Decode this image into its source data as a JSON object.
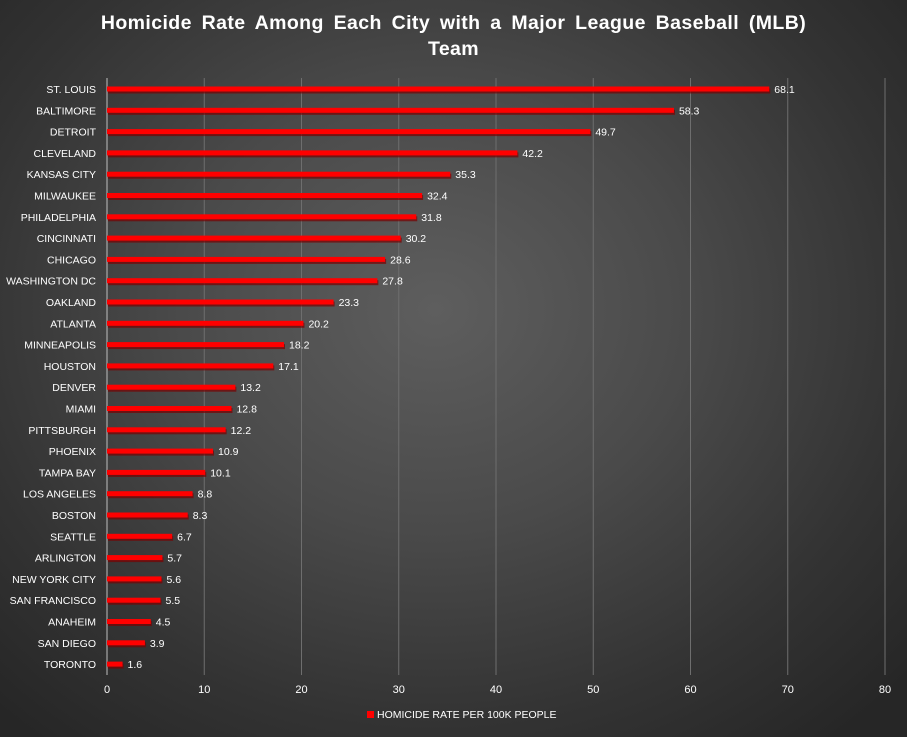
{
  "chart_data": {
    "type": "bar",
    "orientation": "horizontal",
    "title": "Homicide Rate Among Each City with a Major League Baseball (MLB) Team",
    "categories": [
      "ST. LOUIS",
      "BALTIMORE",
      "DETROIT",
      "CLEVELAND",
      "KANSAS CITY",
      "MILWAUKEE",
      "PHILADELPHIA",
      "CINCINNATI",
      "CHICAGO",
      "WASHINGTON DC",
      "OAKLAND",
      "ATLANTA",
      "MINNEAPOLIS",
      "HOUSTON",
      "DENVER",
      "MIAMI",
      "PITTSBURGH",
      "PHOENIX",
      "TAMPA BAY",
      "LOS ANGELES",
      "BOSTON",
      "SEATTLE",
      "ARLINGTON",
      "NEW YORK CITY",
      "SAN FRANCISCO",
      "ANAHEIM",
      "SAN DIEGO",
      "TORONTO"
    ],
    "series": [
      {
        "name": "HOMICIDE RATE PER 100K PEOPLE",
        "values": [
          68.1,
          58.3,
          49.7,
          42.2,
          35.3,
          32.4,
          31.8,
          30.2,
          28.6,
          27.8,
          23.3,
          20.2,
          18.2,
          17.1,
          13.2,
          12.8,
          12.2,
          10.9,
          10.1,
          8.8,
          8.3,
          6.7,
          5.7,
          5.6,
          5.5,
          4.5,
          3.9,
          1.6
        ],
        "labels": [
          "68.1",
          "58.3",
          "49.7",
          "42.2",
          "35.3",
          "32.4",
          "31.8",
          "30.2",
          "28.6",
          "27.8",
          "23.3",
          "20.2",
          "18.2",
          "17.1",
          "13.2",
          "12.8",
          "12.2",
          "10.9",
          "10.1",
          "8.8",
          "8.3",
          "6.7",
          "5.7",
          "5.6",
          "5.5",
          "4.5",
          "3.9",
          "1.6"
        ],
        "color": "#ff0000"
      }
    ],
    "xlim": [
      0,
      80
    ],
    "x_ticks": [
      "0",
      "10",
      "20",
      "30",
      "40",
      "50",
      "60",
      "70",
      "80"
    ],
    "grid": true,
    "legend_position": "bottom",
    "data_labels": true
  },
  "colors": {
    "bar": "#ff0000",
    "bar_shadow": "#7a0000",
    "gridline": "#6e6e6e",
    "axis_line": "#bfbfbf",
    "text": "#ffffff"
  }
}
